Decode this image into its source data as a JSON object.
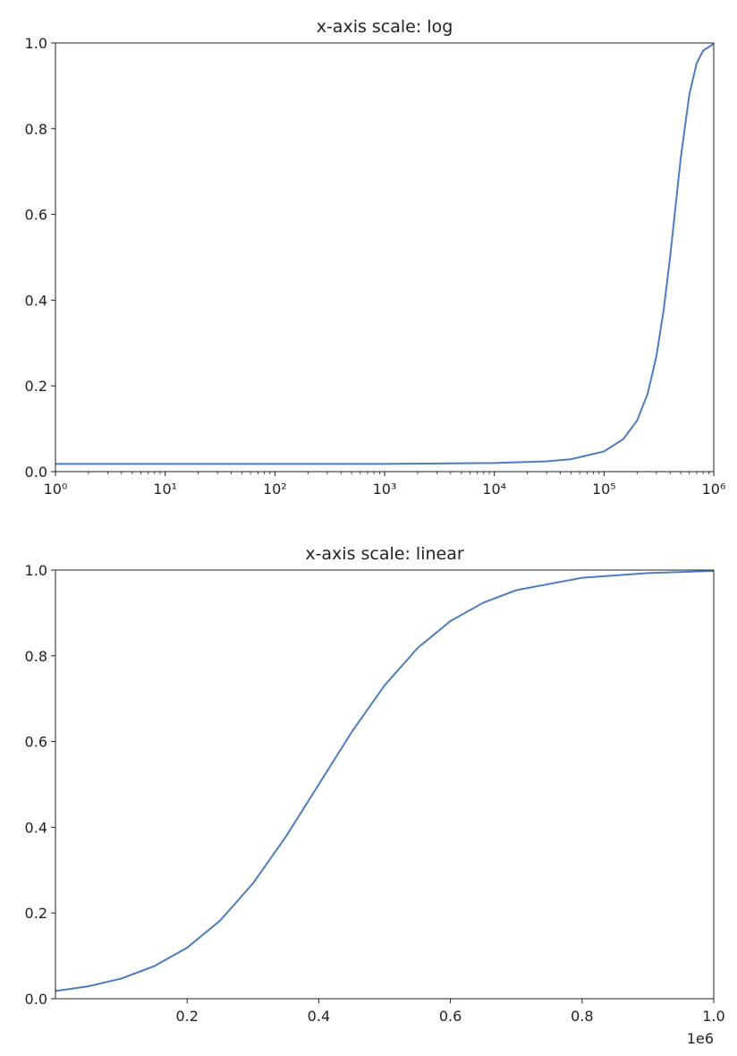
{
  "chart_data": [
    {
      "type": "line",
      "title": "x-axis scale: log",
      "xscale": "log",
      "color": "#4c7dbf",
      "x": [
        1,
        10,
        100,
        1000,
        10000,
        30000,
        50000,
        100000,
        150000,
        200000,
        250000,
        300000,
        350000,
        400000,
        450000,
        500000,
        600000,
        700000,
        800000,
        1000000
      ],
      "values": [
        0.018,
        0.018,
        0.018,
        0.018,
        0.02,
        0.024,
        0.029,
        0.047,
        0.076,
        0.119,
        0.182,
        0.269,
        0.378,
        0.5,
        0.622,
        0.731,
        0.881,
        0.953,
        0.982,
        0.998
      ],
      "xlim": [
        1,
        1000000
      ],
      "ylim": [
        0,
        1
      ],
      "xticks": [
        {
          "value": 1,
          "label": "10⁰"
        },
        {
          "value": 10,
          "label": "10¹"
        },
        {
          "value": 100,
          "label": "10²"
        },
        {
          "value": 1000,
          "label": "10³"
        },
        {
          "value": 10000,
          "label": "10⁴"
        },
        {
          "value": 100000,
          "label": "10⁵"
        },
        {
          "value": 1000000,
          "label": "10⁶"
        }
      ],
      "xminorticks": [
        2,
        3,
        4,
        5,
        6,
        7,
        8,
        9,
        20,
        30,
        40,
        50,
        60,
        70,
        80,
        90,
        200,
        300,
        400,
        500,
        600,
        700,
        800,
        900,
        2000,
        3000,
        4000,
        5000,
        6000,
        7000,
        8000,
        9000,
        20000,
        30000,
        40000,
        50000,
        60000,
        70000,
        80000,
        90000,
        200000,
        300000,
        400000,
        500000,
        600000,
        700000,
        800000,
        900000
      ],
      "yticks": [
        {
          "value": 0,
          "label": "0.0"
        },
        0.2,
        0.4,
        0.6,
        0.8,
        {
          "value": 1,
          "label": "1.0"
        }
      ]
    },
    {
      "type": "line",
      "title": "x-axis scale: linear",
      "xscale": "linear",
      "color": "#4c7dbf",
      "x": [
        0,
        50000,
        100000,
        150000,
        200000,
        250000,
        300000,
        350000,
        400000,
        450000,
        500000,
        550000,
        600000,
        650000,
        700000,
        800000,
        900000,
        1000000
      ],
      "values": [
        0.018,
        0.029,
        0.047,
        0.076,
        0.119,
        0.182,
        0.269,
        0.378,
        0.5,
        0.622,
        0.731,
        0.818,
        0.881,
        0.924,
        0.953,
        0.982,
        0.993,
        0.998
      ],
      "xlim": [
        1,
        1000000
      ],
      "ylim": [
        0,
        1
      ],
      "x_offset_label": "1e6",
      "xticks": [
        {
          "value": 200000,
          "label": "0.2"
        },
        {
          "value": 400000,
          "label": "0.4"
        },
        {
          "value": 600000,
          "label": "0.6"
        },
        {
          "value": 800000,
          "label": "0.8"
        },
        {
          "value": 1000000,
          "label": "1.0"
        }
      ],
      "yticks": [
        {
          "value": 0,
          "label": "0.0"
        },
        0.2,
        0.4,
        0.6,
        0.8,
        {
          "value": 1,
          "label": "1.0"
        }
      ]
    }
  ]
}
